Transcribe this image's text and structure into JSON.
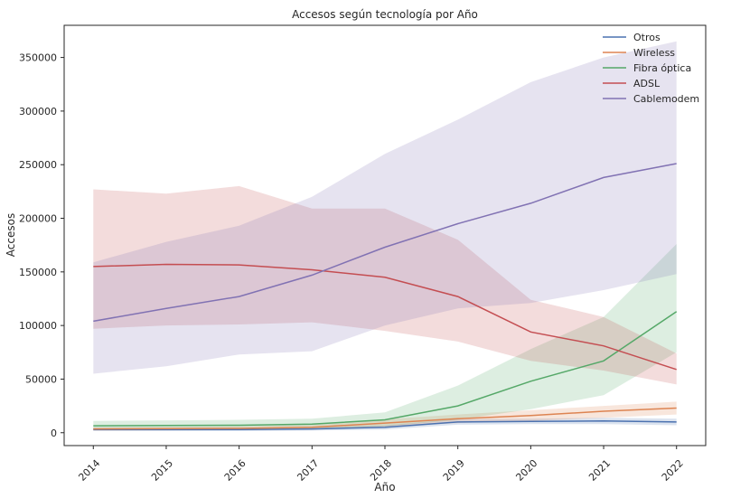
{
  "chart_data": {
    "type": "line",
    "title": "Accesos según tecnología por Año",
    "xlabel": "Año",
    "ylabel": "Accesos",
    "x": [
      2014,
      2015,
      2016,
      2017,
      2018,
      2019,
      2020,
      2021,
      2022
    ],
    "xticks": [
      "2014",
      "2015",
      "2016",
      "2017",
      "2018",
      "2019",
      "2020",
      "2021",
      "2022"
    ],
    "xlim": [
      2013.6,
      2022.4
    ],
    "ylim": [
      -12000,
      380000
    ],
    "yticks": [
      0,
      50000,
      100000,
      150000,
      200000,
      250000,
      300000,
      350000
    ],
    "ytick_labels": [
      "0",
      "50000",
      "100000",
      "150000",
      "200000",
      "250000",
      "300000",
      "350000"
    ],
    "grid": false,
    "legend_position": "top-right",
    "band_opacity": 0.2,
    "series": [
      {
        "name": "Otros",
        "color": "#4c72b0",
        "values": [
          3000,
          3000,
          3000,
          3500,
          5000,
          10000,
          10500,
          11000,
          10000
        ],
        "lower": [
          1500,
          1500,
          1500,
          2000,
          3000,
          7500,
          8000,
          8000,
          7000
        ],
        "upper": [
          4500,
          4500,
          4500,
          5000,
          7000,
          12500,
          13000,
          14000,
          13000
        ]
      },
      {
        "name": "Wireless",
        "color": "#dd8452",
        "values": [
          3500,
          3800,
          4000,
          5000,
          9000,
          13000,
          16000,
          20000,
          23000
        ],
        "lower": [
          2000,
          2200,
          2300,
          3000,
          5500,
          9000,
          11000,
          14000,
          17000
        ],
        "upper": [
          5000,
          5500,
          6000,
          7500,
          12500,
          17000,
          21000,
          25000,
          29000
        ]
      },
      {
        "name": "Fibra óptica",
        "color": "#55a868",
        "values": [
          6500,
          6800,
          7000,
          8000,
          12000,
          25000,
          48000,
          67000,
          113000
        ],
        "lower": [
          3000,
          3200,
          3500,
          4000,
          6000,
          12000,
          22000,
          35000,
          75000
        ],
        "upper": [
          11000,
          11500,
          12000,
          13000,
          19000,
          44000,
          78000,
          108000,
          176000
        ]
      },
      {
        "name": "ADSL",
        "color": "#c44e52",
        "values": [
          155000,
          157000,
          156500,
          152000,
          145000,
          127000,
          94000,
          81000,
          59000
        ],
        "lower": [
          97000,
          100000,
          101000,
          103000,
          95000,
          85000,
          67000,
          58000,
          45000
        ],
        "upper": [
          227000,
          223000,
          230000,
          209000,
          209000,
          180000,
          124000,
          108000,
          74000
        ]
      },
      {
        "name": "Cablemodem",
        "color": "#8172b3",
        "values": [
          104000,
          116000,
          127000,
          147000,
          173000,
          195000,
          214000,
          238000,
          251000
        ],
        "lower": [
          55000,
          62000,
          73000,
          76000,
          100000,
          116000,
          121000,
          133000,
          148000
        ],
        "upper": [
          159000,
          178000,
          193000,
          220000,
          260000,
          292000,
          327000,
          350000,
          365000
        ]
      }
    ]
  }
}
